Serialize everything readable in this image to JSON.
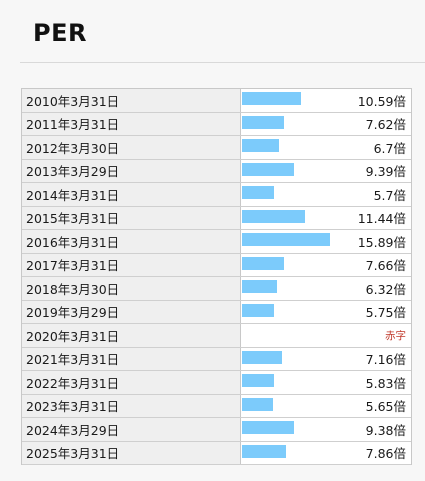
{
  "title": "PER",
  "colors": {
    "bar": "#7ccbfb",
    "deficit": "#c0392b"
  },
  "rows": [
    {
      "date": "2010年3月31日",
      "value": "10.59倍",
      "per": 10.59
    },
    {
      "date": "2011年3月31日",
      "value": "7.62倍",
      "per": 7.62
    },
    {
      "date": "2012年3月30日",
      "value": "6.7倍",
      "per": 6.7
    },
    {
      "date": "2013年3月29日",
      "value": "9.39倍",
      "per": 9.39
    },
    {
      "date": "2014年3月31日",
      "value": "5.7倍",
      "per": 5.7
    },
    {
      "date": "2015年3月31日",
      "value": "11.44倍",
      "per": 11.44
    },
    {
      "date": "2016年3月31日",
      "value": "15.89倍",
      "per": 15.89
    },
    {
      "date": "2017年3月31日",
      "value": "7.66倍",
      "per": 7.66
    },
    {
      "date": "2018年3月30日",
      "value": "6.32倍",
      "per": 6.32
    },
    {
      "date": "2019年3月29日",
      "value": "5.75倍",
      "per": 5.75
    },
    {
      "date": "2020年3月31日",
      "value": "赤字",
      "per": null,
      "deficit": true
    },
    {
      "date": "2021年3月31日",
      "value": "7.16倍",
      "per": 7.16
    },
    {
      "date": "2022年3月31日",
      "value": "5.83倍",
      "per": 5.83
    },
    {
      "date": "2023年3月31日",
      "value": "5.65倍",
      "per": 5.65
    },
    {
      "date": "2024年3月29日",
      "value": "9.38倍",
      "per": 9.38
    },
    {
      "date": "2025年3月31日",
      "value": "7.86倍",
      "per": 7.86
    }
  ]
}
